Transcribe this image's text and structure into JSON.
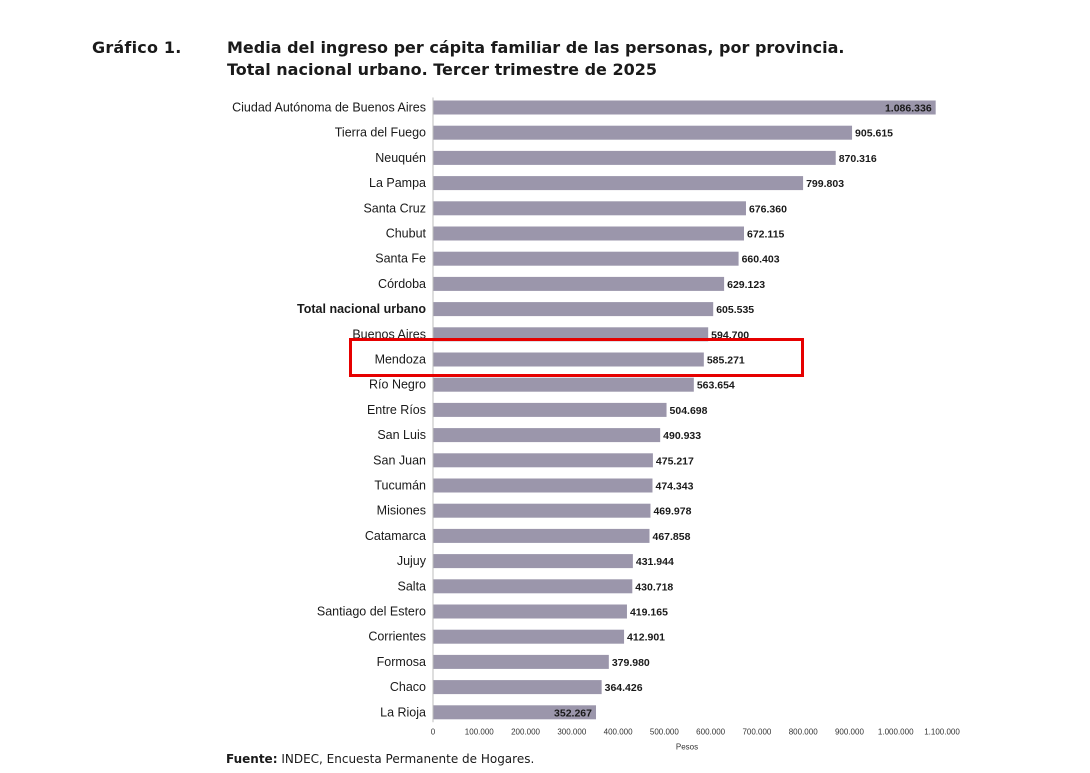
{
  "header": {
    "figure_label": "Gráfico 1.",
    "title_line1": "Media del ingreso per cápita familiar de las personas, por provincia.",
    "title_line2": "Total nacional urbano. Tercer trimestre de 2025"
  },
  "footer": {
    "source_label": "Fuente:",
    "source_text": " INDEC, Encuesta Permanente de Hogares."
  },
  "colors": {
    "bar": "#9b96ab",
    "highlight": "#e60000"
  },
  "chart_data": {
    "type": "bar",
    "orientation": "horizontal",
    "title": "Media del ingreso per cápita familiar de las personas, por provincia. Total nacional urbano. Tercer trimestre de 2025",
    "xlabel": "Pesos",
    "ylabel": "",
    "xlim": [
      0,
      1100000
    ],
    "xticks": [
      0,
      100000,
      200000,
      300000,
      400000,
      500000,
      600000,
      700000,
      800000,
      900000,
      1000000,
      1100000
    ],
    "xtick_labels": [
      "0",
      "100.000",
      "200.000",
      "300.000",
      "400.000",
      "500.000",
      "600.000",
      "700.000",
      "800.000",
      "900.000",
      "1.000.000",
      "1.100.000"
    ],
    "grid": false,
    "highlighted_category": "Mendoza",
    "bold_category": "Total nacional urbano",
    "categories": [
      "Ciudad Autónoma de Buenos Aires",
      "Tierra del Fuego",
      "Neuquén",
      "La Pampa",
      "Santa Cruz",
      "Chubut",
      "Santa Fe",
      "Córdoba",
      "Total nacional urbano",
      "Buenos Aires",
      "Mendoza",
      "Río Negro",
      "Entre Ríos",
      "San Luis",
      "San Juan",
      "Tucumán",
      "Misiones",
      "Catamarca",
      "Jujuy",
      "Salta",
      "Santiago del Estero",
      "Corrientes",
      "Formosa",
      "Chaco",
      "La Rioja"
    ],
    "values": [
      1086336,
      905615,
      870316,
      799803,
      676360,
      672115,
      660403,
      629123,
      605535,
      594700,
      585271,
      563654,
      504698,
      490933,
      475217,
      474343,
      469978,
      467858,
      431944,
      430718,
      419165,
      412901,
      379980,
      364426,
      352267
    ],
    "value_labels": [
      "1.086.336",
      "905.615",
      "870.316",
      "799.803",
      "676.360",
      "672.115",
      "660.403",
      "629.123",
      "605.535",
      "594.700",
      "585.271",
      "563.654",
      "504.698",
      "490.933",
      "475.217",
      "474.343",
      "469.978",
      "467.858",
      "431.944",
      "430.718",
      "419.165",
      "412.901",
      "379.980",
      "364.426",
      "352.267"
    ]
  }
}
